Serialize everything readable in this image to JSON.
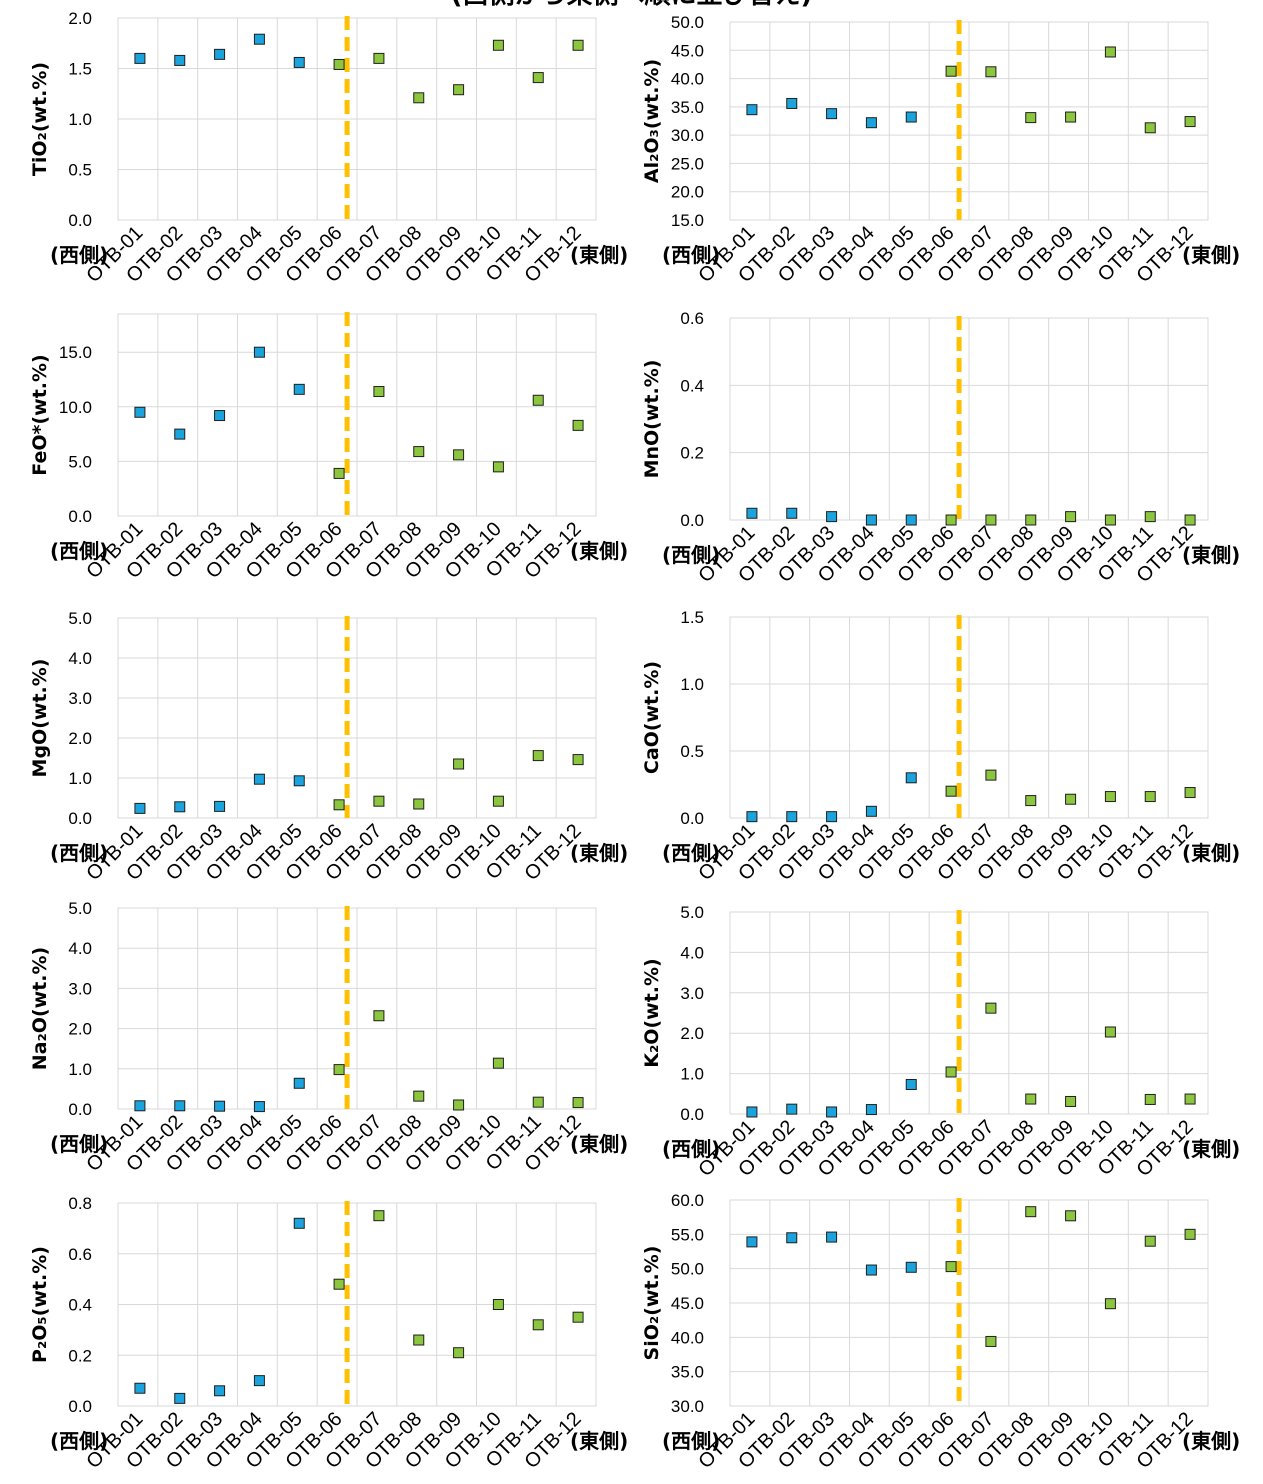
{
  "page_title": "(西側から東側へ順に並び替え)",
  "side_labels": {
    "west": "(西側)",
    "east": "(東側)"
  },
  "colors": {
    "west_marker": "#1aa3dc",
    "east_marker": "#8cc63f",
    "marker_edge": "#1f1f1f",
    "divider": "#ffc000",
    "grid": "#d9d9d9"
  },
  "chart_data": [
    {
      "type": "scatter",
      "ylabel": "TiO₂(wt.%)",
      "categories": [
        "OTB-01",
        "OTB-02",
        "OTB-03",
        "OTB-04",
        "OTB-05",
        "OTB-06",
        "OTB-07",
        "OTB-08",
        "OTB-09",
        "OTB-10",
        "OTB-11",
        "OTB-12"
      ],
      "values": [
        1.6,
        1.58,
        1.64,
        1.79,
        1.56,
        1.54,
        1.6,
        1.21,
        1.29,
        1.73,
        1.41,
        1.73
      ],
      "ylim": [
        0,
        2
      ],
      "yticks": [
        "0.0",
        "0.5",
        "1.0",
        "1.5",
        "2.0"
      ],
      "divider_after": 5,
      "grid": true
    },
    {
      "type": "scatter",
      "ylabel": "Al₂O₃(wt.%)",
      "categories": [
        "OTB-01",
        "OTB-02",
        "OTB-03",
        "OTB-04",
        "OTB-05",
        "OTB-06",
        "OTB-07",
        "OTB-08",
        "OTB-09",
        "OTB-10",
        "OTB-11",
        "OTB-12"
      ],
      "values": [
        34.5,
        35.6,
        33.8,
        32.2,
        33.2,
        41.3,
        41.2,
        33.1,
        33.2,
        44.7,
        31.3,
        32.4
      ],
      "ylim": [
        15,
        50
      ],
      "yticks": [
        "15.0",
        "20.0",
        "25.0",
        "30.0",
        "35.0",
        "40.0",
        "45.0",
        "50.0"
      ],
      "divider_after": 5,
      "grid": true
    },
    {
      "type": "scatter",
      "ylabel": "FeO*(wt.%)",
      "categories": [
        "OTB-01",
        "OTB-02",
        "OTB-03",
        "OTB-04",
        "OTB-05",
        "OTB-06",
        "OTB-07",
        "OTB-08",
        "OTB-09",
        "OTB-10",
        "OTB-11",
        "OTB-12"
      ],
      "values": [
        9.5,
        7.5,
        9.2,
        15.0,
        11.6,
        3.9,
        11.4,
        5.9,
        5.6,
        4.5,
        10.6,
        8.3
      ],
      "ylim": [
        0,
        18.5
      ],
      "yticks": [
        "0.0",
        "5.0",
        "10.0",
        "15.0"
      ],
      "divider_after": 5,
      "grid": true
    },
    {
      "type": "scatter",
      "ylabel": "MnO(wt.%)",
      "categories": [
        "OTB-01",
        "OTB-02",
        "OTB-03",
        "OTB-04",
        "OTB-05",
        "OTB-06",
        "OTB-07",
        "OTB-08",
        "OTB-09",
        "OTB-10",
        "OTB-11",
        "OTB-12"
      ],
      "values": [
        0.02,
        0.02,
        0.01,
        0.0,
        0.0,
        0.0,
        0.0,
        0.0,
        0.01,
        0.0,
        0.01,
        0.0
      ],
      "ylim": [
        0,
        0.6
      ],
      "yticks": [
        "0.0",
        "0.2",
        "0.4",
        "0.6"
      ],
      "divider_after": 5,
      "grid": true
    },
    {
      "type": "scatter",
      "ylabel": "MgO(wt.%)",
      "categories": [
        "OTB-01",
        "OTB-02",
        "OTB-03",
        "OTB-04",
        "OTB-05",
        "OTB-06",
        "OTB-07",
        "OTB-08",
        "OTB-09",
        "OTB-10",
        "OTB-11",
        "OTB-12"
      ],
      "values": [
        0.24,
        0.28,
        0.29,
        0.97,
        0.93,
        0.33,
        0.42,
        0.35,
        1.35,
        0.42,
        1.56,
        1.46
      ],
      "ylim": [
        0,
        5
      ],
      "yticks": [
        "0.0",
        "1.0",
        "2.0",
        "3.0",
        "4.0",
        "5.0"
      ],
      "divider_after": 5,
      "grid": true
    },
    {
      "type": "scatter",
      "ylabel": "CaO(wt.%)",
      "categories": [
        "OTB-01",
        "OTB-02",
        "OTB-03",
        "OTB-04",
        "OTB-05",
        "OTB-06",
        "OTB-07",
        "OTB-08",
        "OTB-09",
        "OTB-10",
        "OTB-11",
        "OTB-12"
      ],
      "values": [
        0.01,
        0.01,
        0.01,
        0.05,
        0.3,
        0.2,
        0.32,
        0.13,
        0.14,
        0.16,
        0.16,
        0.19
      ],
      "ylim": [
        0,
        1.5
      ],
      "yticks": [
        "0.0",
        "0.5",
        "1.0",
        "1.5"
      ],
      "divider_after": 5,
      "grid": true
    },
    {
      "type": "scatter",
      "ylabel": "Na₂O(wt.%)",
      "categories": [
        "OTB-01",
        "OTB-02",
        "OTB-03",
        "OTB-04",
        "OTB-05",
        "OTB-06",
        "OTB-07",
        "OTB-08",
        "OTB-09",
        "OTB-10",
        "OTB-11",
        "OTB-12"
      ],
      "values": [
        0.08,
        0.08,
        0.07,
        0.06,
        0.64,
        0.98,
        2.32,
        0.32,
        0.1,
        1.14,
        0.17,
        0.16
      ],
      "ylim": [
        0,
        5
      ],
      "yticks": [
        "0.0",
        "1.0",
        "2.0",
        "3.0",
        "4.0",
        "5.0"
      ],
      "divider_after": 5,
      "grid": true
    },
    {
      "type": "scatter",
      "ylabel": "K₂O(wt.%)",
      "categories": [
        "OTB-01",
        "OTB-02",
        "OTB-03",
        "OTB-04",
        "OTB-05",
        "OTB-06",
        "OTB-07",
        "OTB-08",
        "OTB-09",
        "OTB-10",
        "OTB-11",
        "OTB-12"
      ],
      "values": [
        0.05,
        0.12,
        0.05,
        0.11,
        0.73,
        1.04,
        2.62,
        0.37,
        0.31,
        2.03,
        0.36,
        0.37
      ],
      "ylim": [
        0,
        5
      ],
      "yticks": [
        "0.0",
        "1.0",
        "2.0",
        "3.0",
        "4.0",
        "5.0"
      ],
      "divider_after": 5,
      "grid": true
    },
    {
      "type": "scatter",
      "ylabel": "P₂O₅(wt.%)",
      "categories": [
        "OTB-01",
        "OTB-02",
        "OTB-03",
        "OTB-04",
        "OTB-05",
        "OTB-06",
        "OTB-07",
        "OTB-08",
        "OTB-09",
        "OTB-10",
        "OTB-11",
        "OTB-12"
      ],
      "values": [
        0.07,
        0.03,
        0.06,
        0.1,
        0.72,
        0.48,
        0.75,
        0.26,
        0.21,
        0.4,
        0.32,
        0.35
      ],
      "ylim": [
        0,
        0.8
      ],
      "yticks": [
        "0.0",
        "0.2",
        "0.4",
        "0.6",
        "0.8"
      ],
      "divider_after": 5,
      "grid": true
    },
    {
      "type": "scatter",
      "ylabel": "SiO₂(wt.%)",
      "categories": [
        "OTB-01",
        "OTB-02",
        "OTB-03",
        "OTB-04",
        "OTB-05",
        "OTB-06",
        "OTB-07",
        "OTB-08",
        "OTB-09",
        "OTB-10",
        "OTB-11",
        "OTB-12"
      ],
      "values": [
        53.9,
        54.5,
        54.6,
        49.8,
        50.2,
        50.3,
        39.4,
        58.3,
        57.7,
        44.9,
        54.0,
        55.0
      ],
      "ylim": [
        30,
        60
      ],
      "yticks": [
        "30.0",
        "35.0",
        "40.0",
        "45.0",
        "50.0",
        "55.0",
        "60.0"
      ],
      "divider_after": 5,
      "grid": true
    }
  ]
}
